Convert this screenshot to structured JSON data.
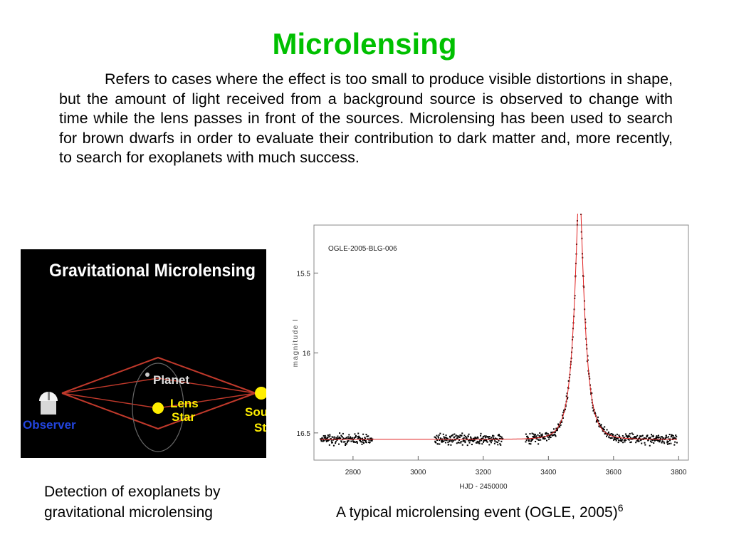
{
  "title": "Microlensing",
  "body_text": "Refers to cases where the effect is too small to produce visible distortions in shape, but the amount of light received from a background source is observed to change with time while the lens passes in front of the sources. Microlensing has been used to search for brown dwarfs in order to evaluate their contribution to dark matter and, more recently, to search for exoplanets with much success.",
  "diagram": {
    "heading": "Gravitational Microlensing",
    "planet": "Planet",
    "lens_line1": "Lens",
    "lens_line2": "Star",
    "observer": "Observer",
    "source_line1": "Sou",
    "source_line2": "St",
    "colors": {
      "background": "#000000",
      "lines": "#c0392b",
      "lens": "#ffee00",
      "observer": "#2244dd"
    }
  },
  "caption_left": "Detection of exoplanets by gravitational microlensing",
  "caption_right": "A typical microlensing event (OGLE, 2005)",
  "caption_right_ref": "6",
  "chart_data": {
    "type": "scatter",
    "title": "OGLE-2005-BLG-006",
    "xlabel": "HJD - 2450000",
    "ylabel": "magnitude I",
    "xlim": [
      2680,
      3830
    ],
    "ylim": [
      16.67,
      15.2
    ],
    "xticks": [
      2800,
      3000,
      3200,
      3400,
      3600,
      3800
    ],
    "yticks": [
      15.5,
      16,
      16.5
    ],
    "grid": false,
    "model": {
      "t0": 3495,
      "tE": 35,
      "u0": 0.24,
      "baseline": 16.54,
      "color": "#e02020"
    },
    "observing_seasons": [
      [
        2700,
        2860
      ],
      [
        3050,
        3260
      ],
      [
        3330,
        3795
      ]
    ]
  }
}
